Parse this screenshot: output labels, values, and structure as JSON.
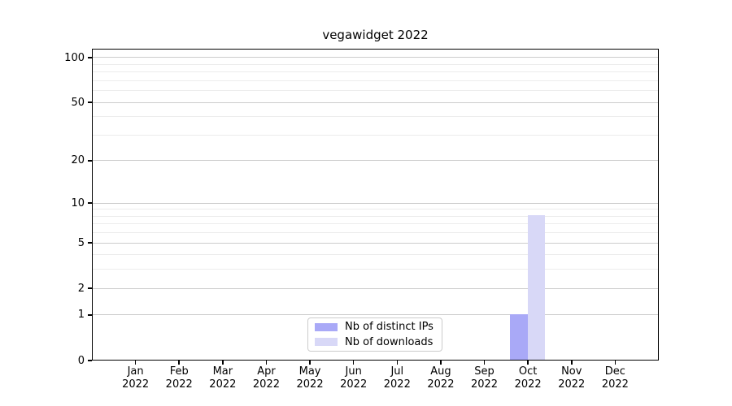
{
  "chart_data": {
    "type": "bar",
    "title": "vegawidget 2022",
    "categories": [
      "Jan 2022",
      "Feb 2022",
      "Mar 2022",
      "Apr 2022",
      "May 2022",
      "Jun 2022",
      "Jul 2022",
      "Aug 2022",
      "Sep 2022",
      "Oct 2022",
      "Nov 2022",
      "Dec 2022"
    ],
    "x_tick_months": [
      "Jan",
      "Feb",
      "Mar",
      "Apr",
      "May",
      "Jun",
      "Jul",
      "Aug",
      "Sep",
      "Oct",
      "Nov",
      "Dec"
    ],
    "x_tick_year": "2022",
    "y_major_ticks": [
      0,
      1,
      2,
      5,
      10,
      20,
      50,
      100
    ],
    "y_minor_ticks": [
      3,
      4,
      6,
      7,
      8,
      9,
      30,
      40,
      60,
      70,
      80,
      90
    ],
    "y_scale": "log1p",
    "ylim": [
      0,
      115
    ],
    "grid": "on",
    "legend_position": "lower center",
    "series": [
      {
        "name": "Nb of distinct IPs",
        "color": "#a9a9f7",
        "values": [
          0,
          0,
          0,
          0,
          0,
          0,
          0,
          0,
          0,
          1,
          0,
          0
        ]
      },
      {
        "name": "Nb of downloads",
        "color": "#d8d8f7",
        "values": [
          0,
          0,
          0,
          0,
          0,
          0,
          0,
          0,
          0,
          8,
          0,
          0
        ]
      }
    ],
    "colors": {
      "axis": "#000000",
      "major_grid": "#cccccc",
      "minor_grid": "#ececec",
      "background": "#ffffff"
    }
  }
}
